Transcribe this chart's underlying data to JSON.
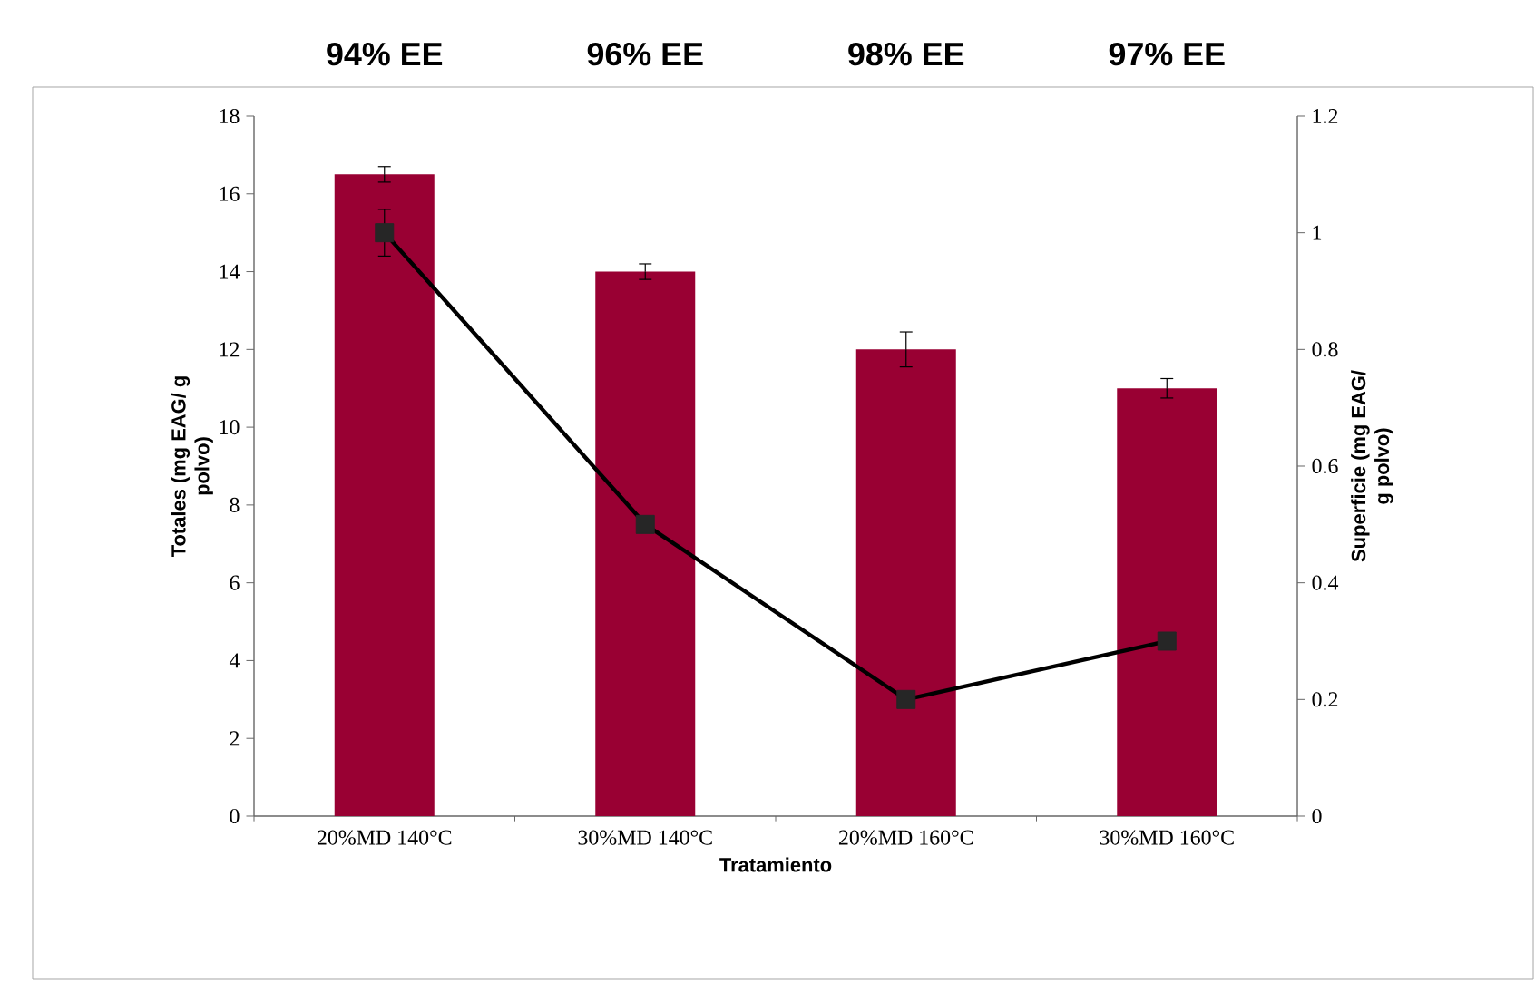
{
  "chart_data": {
    "type": "bar",
    "categories": [
      "20%MD 140°C",
      "30%MD 140°C",
      "20%MD 160°C",
      "30%MD 160°C"
    ],
    "xlabel": "Tratamiento",
    "ylabel": "Totales (mg EAG/ g polvo)",
    "y2label": "Superficie (mg EAG/ g polvo)",
    "series": [
      {
        "color": "#990033",
        "values": [
          16.5,
          14,
          12,
          11
        ],
        "errors": [
          0.2,
          0.2,
          0.45,
          0.25
        ]
      },
      {
        "type": "line",
        "axis": "y2",
        "color": "#000000",
        "marker": "square",
        "line_style": "solid",
        "values": [
          1.0,
          0.5,
          0.2,
          0.3
        ],
        "errors": [
          0.04,
          null,
          null,
          null
        ]
      }
    ],
    "ylim": [
      0,
      18
    ],
    "yticks": [
      0,
      2,
      4,
      6,
      8,
      10,
      12,
      14,
      16,
      18
    ],
    "y2lim": [
      0,
      1.2
    ],
    "y2ticks": [
      0,
      0.2,
      0.4,
      0.6,
      0.8,
      1,
      1.2
    ],
    "annotations": [
      "94% EE",
      "96% EE",
      "98% EE",
      "97% EE"
    ]
  }
}
